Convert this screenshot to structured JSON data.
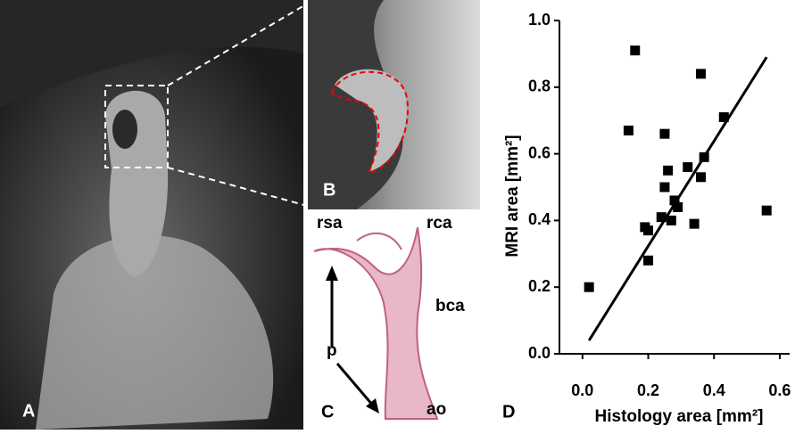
{
  "panel_labels": [
    "A",
    "B",
    "C",
    "D"
  ],
  "histology_labels": [
    "rsa",
    "rca",
    "bca",
    "p",
    "ao"
  ],
  "chart_data": {
    "type": "scatter",
    "x_label": "Histology area [mm²]",
    "y_label": "MRI area [mm²]",
    "color": "#000000",
    "x": [
      0.02,
      0.16,
      0.14,
      0.25,
      0.36,
      0.43,
      0.56,
      0.26,
      0.25,
      0.32,
      0.37,
      0.36,
      0.28,
      0.29,
      0.24,
      0.27,
      0.19,
      0.2,
      0.34,
      0.2
    ],
    "y": [
      0.2,
      0.91,
      0.67,
      0.66,
      0.84,
      0.71,
      0.43,
      0.55,
      0.5,
      0.56,
      0.59,
      0.53,
      0.46,
      0.44,
      0.41,
      0.4,
      0.38,
      0.37,
      0.39,
      0.28
    ],
    "trend_line": {
      "x": [
        0.02,
        0.56
      ],
      "y": [
        0.04,
        0.89
      ]
    },
    "xlim": [
      -0.07,
      0.63
    ],
    "ylim": [
      0,
      1.0
    ],
    "xticks": [
      {
        "value": 0,
        "label": "0.0"
      },
      0.2,
      0.4,
      0.6
    ],
    "yticks": [
      {
        "value": 0,
        "label": "0.0"
      },
      0.2,
      0.4,
      0.6,
      0.8,
      {
        "value": 1,
        "label": "1.0"
      }
    ]
  }
}
